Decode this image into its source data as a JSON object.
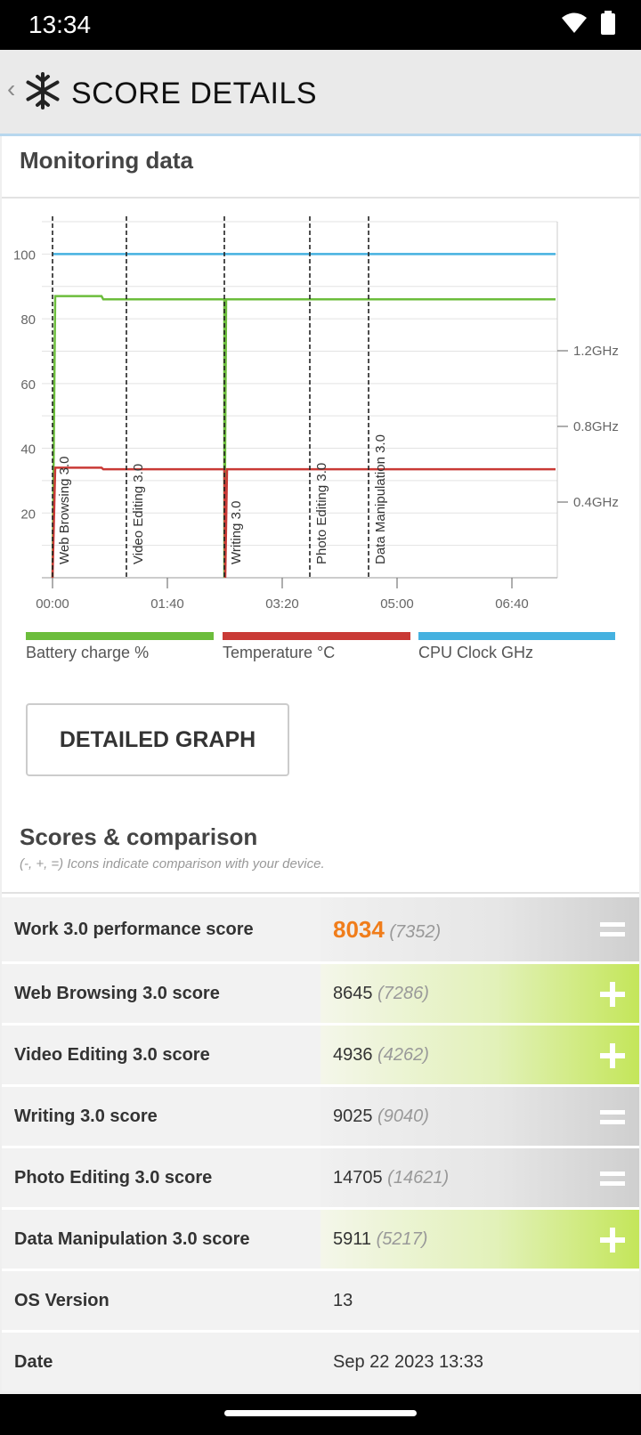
{
  "status": {
    "time": "13:34"
  },
  "appbar": {
    "back": "‹",
    "title": "SCORE DETAILS"
  },
  "monitoring": {
    "title": "Monitoring data"
  },
  "chart_data": {
    "type": "line",
    "x_ticks": [
      "00:00",
      "01:40",
      "03:20",
      "05:00",
      "06:40"
    ],
    "y_ticks": [
      20,
      40,
      60,
      80,
      100
    ],
    "y2_ticks": [
      "0.4GHz",
      "0.8GHz",
      "1.2GHz"
    ],
    "ylim": [
      0,
      110
    ],
    "markers": [
      "Web Browsing 3.0",
      "Video Editing 3.0",
      "Writing 3.0",
      "Photo Editing 3.0",
      "Data Manipulation 3.0"
    ],
    "series": [
      {
        "name": "Battery charge %",
        "color": "#6cbd3c"
      },
      {
        "name": "Temperature °C",
        "color": "#c93a36"
      },
      {
        "name": "CPU Clock GHz",
        "color": "#45b1e0"
      }
    ],
    "grid": true
  },
  "detailed_button": "DETAILED GRAPH",
  "scores": {
    "title": "Scores & comparison",
    "subtitle": "(-, +, =) Icons indicate comparison with your device.",
    "rows": [
      {
        "label": "Work 3.0 performance score",
        "value": "8034",
        "cmp": "(7352)",
        "sign": "="
      },
      {
        "label": "Web Browsing 3.0 score",
        "value": "8645",
        "cmp": "(7286)",
        "sign": "+"
      },
      {
        "label": "Video Editing 3.0 score",
        "value": "4936",
        "cmp": "(4262)",
        "sign": "+"
      },
      {
        "label": "Writing 3.0 score",
        "value": "9025",
        "cmp": "(9040)",
        "sign": "="
      },
      {
        "label": "Photo Editing 3.0 score",
        "value": "14705",
        "cmp": "(14621)",
        "sign": "="
      },
      {
        "label": "Data Manipulation 3.0 score",
        "value": "5911",
        "cmp": "(5217)",
        "sign": "+"
      },
      {
        "label": "OS Version",
        "value": "13"
      },
      {
        "label": "Date",
        "value": "Sep 22 2023 13:33"
      }
    ]
  }
}
